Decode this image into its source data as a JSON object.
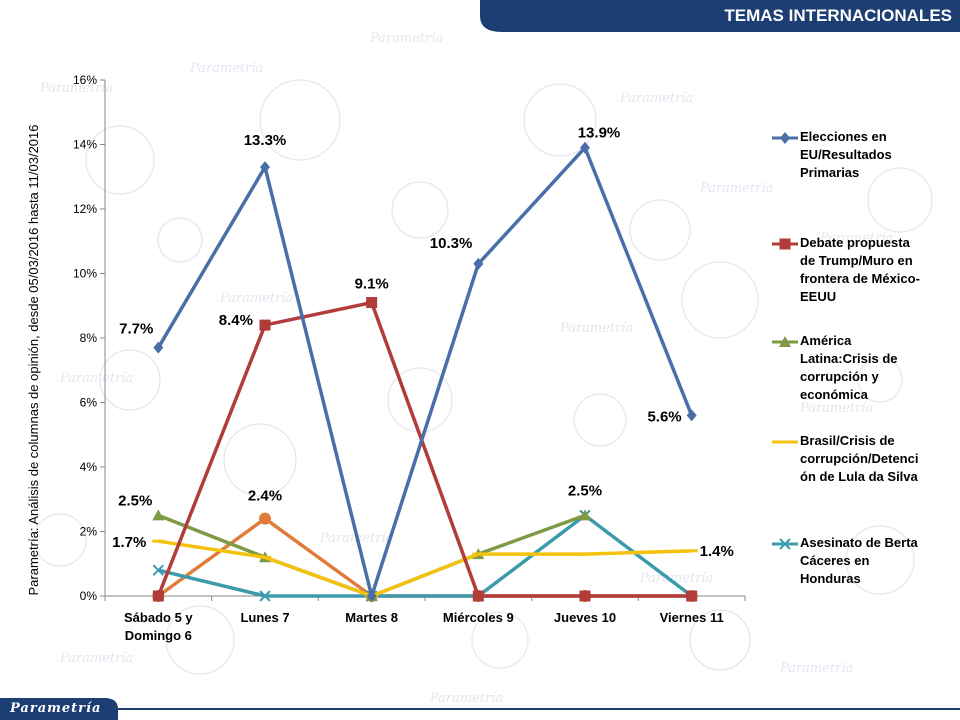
{
  "header": {
    "title": "TEMAS INTERNACIONALES"
  },
  "brand": {
    "logo_text": "Parametría"
  },
  "source_note": "Parametría: Análisis de columnas de opinión, desde 05/03/2016 hasta 11/03/2016",
  "colors": {
    "header_bg": "#1c3e73",
    "elecciones": "#4a6fa8",
    "debate": "#b13c3a",
    "america": "#7f9a45",
    "brasil": "#f4c20d",
    "berta": "#3c9aac",
    "orange_series": "#e07b39"
  },
  "chart_data": {
    "type": "line",
    "categories": [
      "Sábado 5 y Domingo 6",
      "Lunes 7",
      "Martes 8",
      "Miércoles 9",
      "Jueves 10",
      "Viernes 11"
    ],
    "category_lines": [
      [
        "Sábado 5 y",
        "Domingo 6"
      ],
      [
        "Lunes 7"
      ],
      [
        "Martes 8"
      ],
      [
        "Miércoles 9"
      ],
      [
        "Jueves 10"
      ],
      [
        "Viernes 11"
      ]
    ],
    "y_ticks": [
      "0%",
      "2%",
      "4%",
      "6%",
      "8%",
      "10%",
      "12%",
      "14%",
      "16%"
    ],
    "ylim": [
      0,
      16
    ],
    "ylabel": "",
    "xlabel": "",
    "legend_position": "right",
    "grid": false,
    "series": [
      {
        "name": "Elecciones en EU/Resultados Primarias",
        "name_lines": [
          "Elecciones en",
          "EU/Resultados",
          "Primarias"
        ],
        "color": "#4a6fa8",
        "marker": "diamond",
        "values": [
          7.7,
          13.3,
          0,
          10.3,
          13.9,
          5.6
        ],
        "labels": [
          "7.7%",
          "13.3%",
          "",
          "10.3%",
          "13.9%",
          "5.6%"
        ],
        "in_legend": true
      },
      {
        "name": "Debate propuesta de Trump/Muro en frontera de México-EEUU",
        "name_lines": [
          "Debate propuesta",
          "de Trump/Muro en",
          "frontera de México-",
          "EEUU"
        ],
        "color": "#b13c3a",
        "marker": "square",
        "values": [
          0,
          8.4,
          9.1,
          0,
          0,
          0
        ],
        "labels": [
          "",
          "8.4%",
          "9.1%",
          "",
          "",
          ""
        ],
        "in_legend": true
      },
      {
        "name": "América Latina:Crisis de corrupción y económica",
        "name_lines": [
          "América",
          "Latina:Crisis de",
          "corrupción y",
          "económica"
        ],
        "color": "#7f9a45",
        "marker": "triangle",
        "values": [
          2.5,
          1.2,
          0,
          1.3,
          2.5,
          null
        ],
        "labels": [
          "2.5%",
          "",
          "",
          "",
          "",
          ""
        ],
        "in_legend": true
      },
      {
        "name": "Brasil/Crisis de corrupción/Detención de Lula da Silva",
        "name_lines": [
          "Brasil/Crisis de",
          "corrupción/Detenci",
          "ón de Lula da Silva"
        ],
        "color": "#f4c20d",
        "marker": "dash",
        "values": [
          1.7,
          1.2,
          0,
          1.3,
          1.3,
          1.4
        ],
        "labels": [
          "1.7%",
          "",
          "",
          "",
          "",
          "1.4%"
        ],
        "in_legend": true
      },
      {
        "name": "Asesinato de Berta Cáceres en Honduras",
        "name_lines": [
          "Asesinato de Berta",
          "Cáceres en",
          "Honduras"
        ],
        "color": "#3c9aac",
        "marker": "x",
        "values": [
          0.8,
          0,
          0,
          0,
          2.5,
          0
        ],
        "labels": [
          "",
          "",
          "",
          "",
          "2.5%",
          ""
        ],
        "in_legend": true
      },
      {
        "name": "",
        "color": "#e07b39",
        "marker": "circle",
        "values": [
          0,
          2.4,
          0,
          0,
          0,
          0
        ],
        "labels": [
          "",
          "2.4%",
          "",
          "",
          "",
          ""
        ],
        "in_legend": false
      }
    ]
  }
}
